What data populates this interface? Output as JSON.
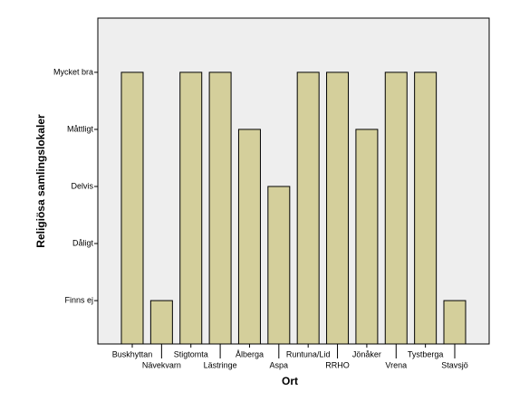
{
  "chart_data": {
    "type": "bar",
    "x_label": "Ort",
    "y_label": "Religiösa samlingslokaler",
    "categories": [
      "Buskhyttan",
      "Nävekvarn",
      "Stigtomta",
      "Lästringe",
      "Ålberga",
      "Aspa",
      "Runtuna/Lid",
      "RRHO",
      "Jönåker",
      "Vrena",
      "Tystberga",
      "Stavsjö"
    ],
    "values": [
      5,
      1,
      5,
      5,
      4,
      3,
      5,
      5,
      4,
      5,
      5,
      1
    ],
    "color": "#d4cf9b",
    "ylim": [
      0.24,
      5.95
    ],
    "yticks": [
      {
        "value": 1,
        "label": "Finns ej"
      },
      {
        "value": 2,
        "label": "Dåligt"
      },
      {
        "value": 3,
        "label": "Delvis"
      },
      {
        "value": 4,
        "label": "Måttligt"
      },
      {
        "value": 5,
        "label": "Mycket bra"
      }
    ],
    "grid": false
  }
}
